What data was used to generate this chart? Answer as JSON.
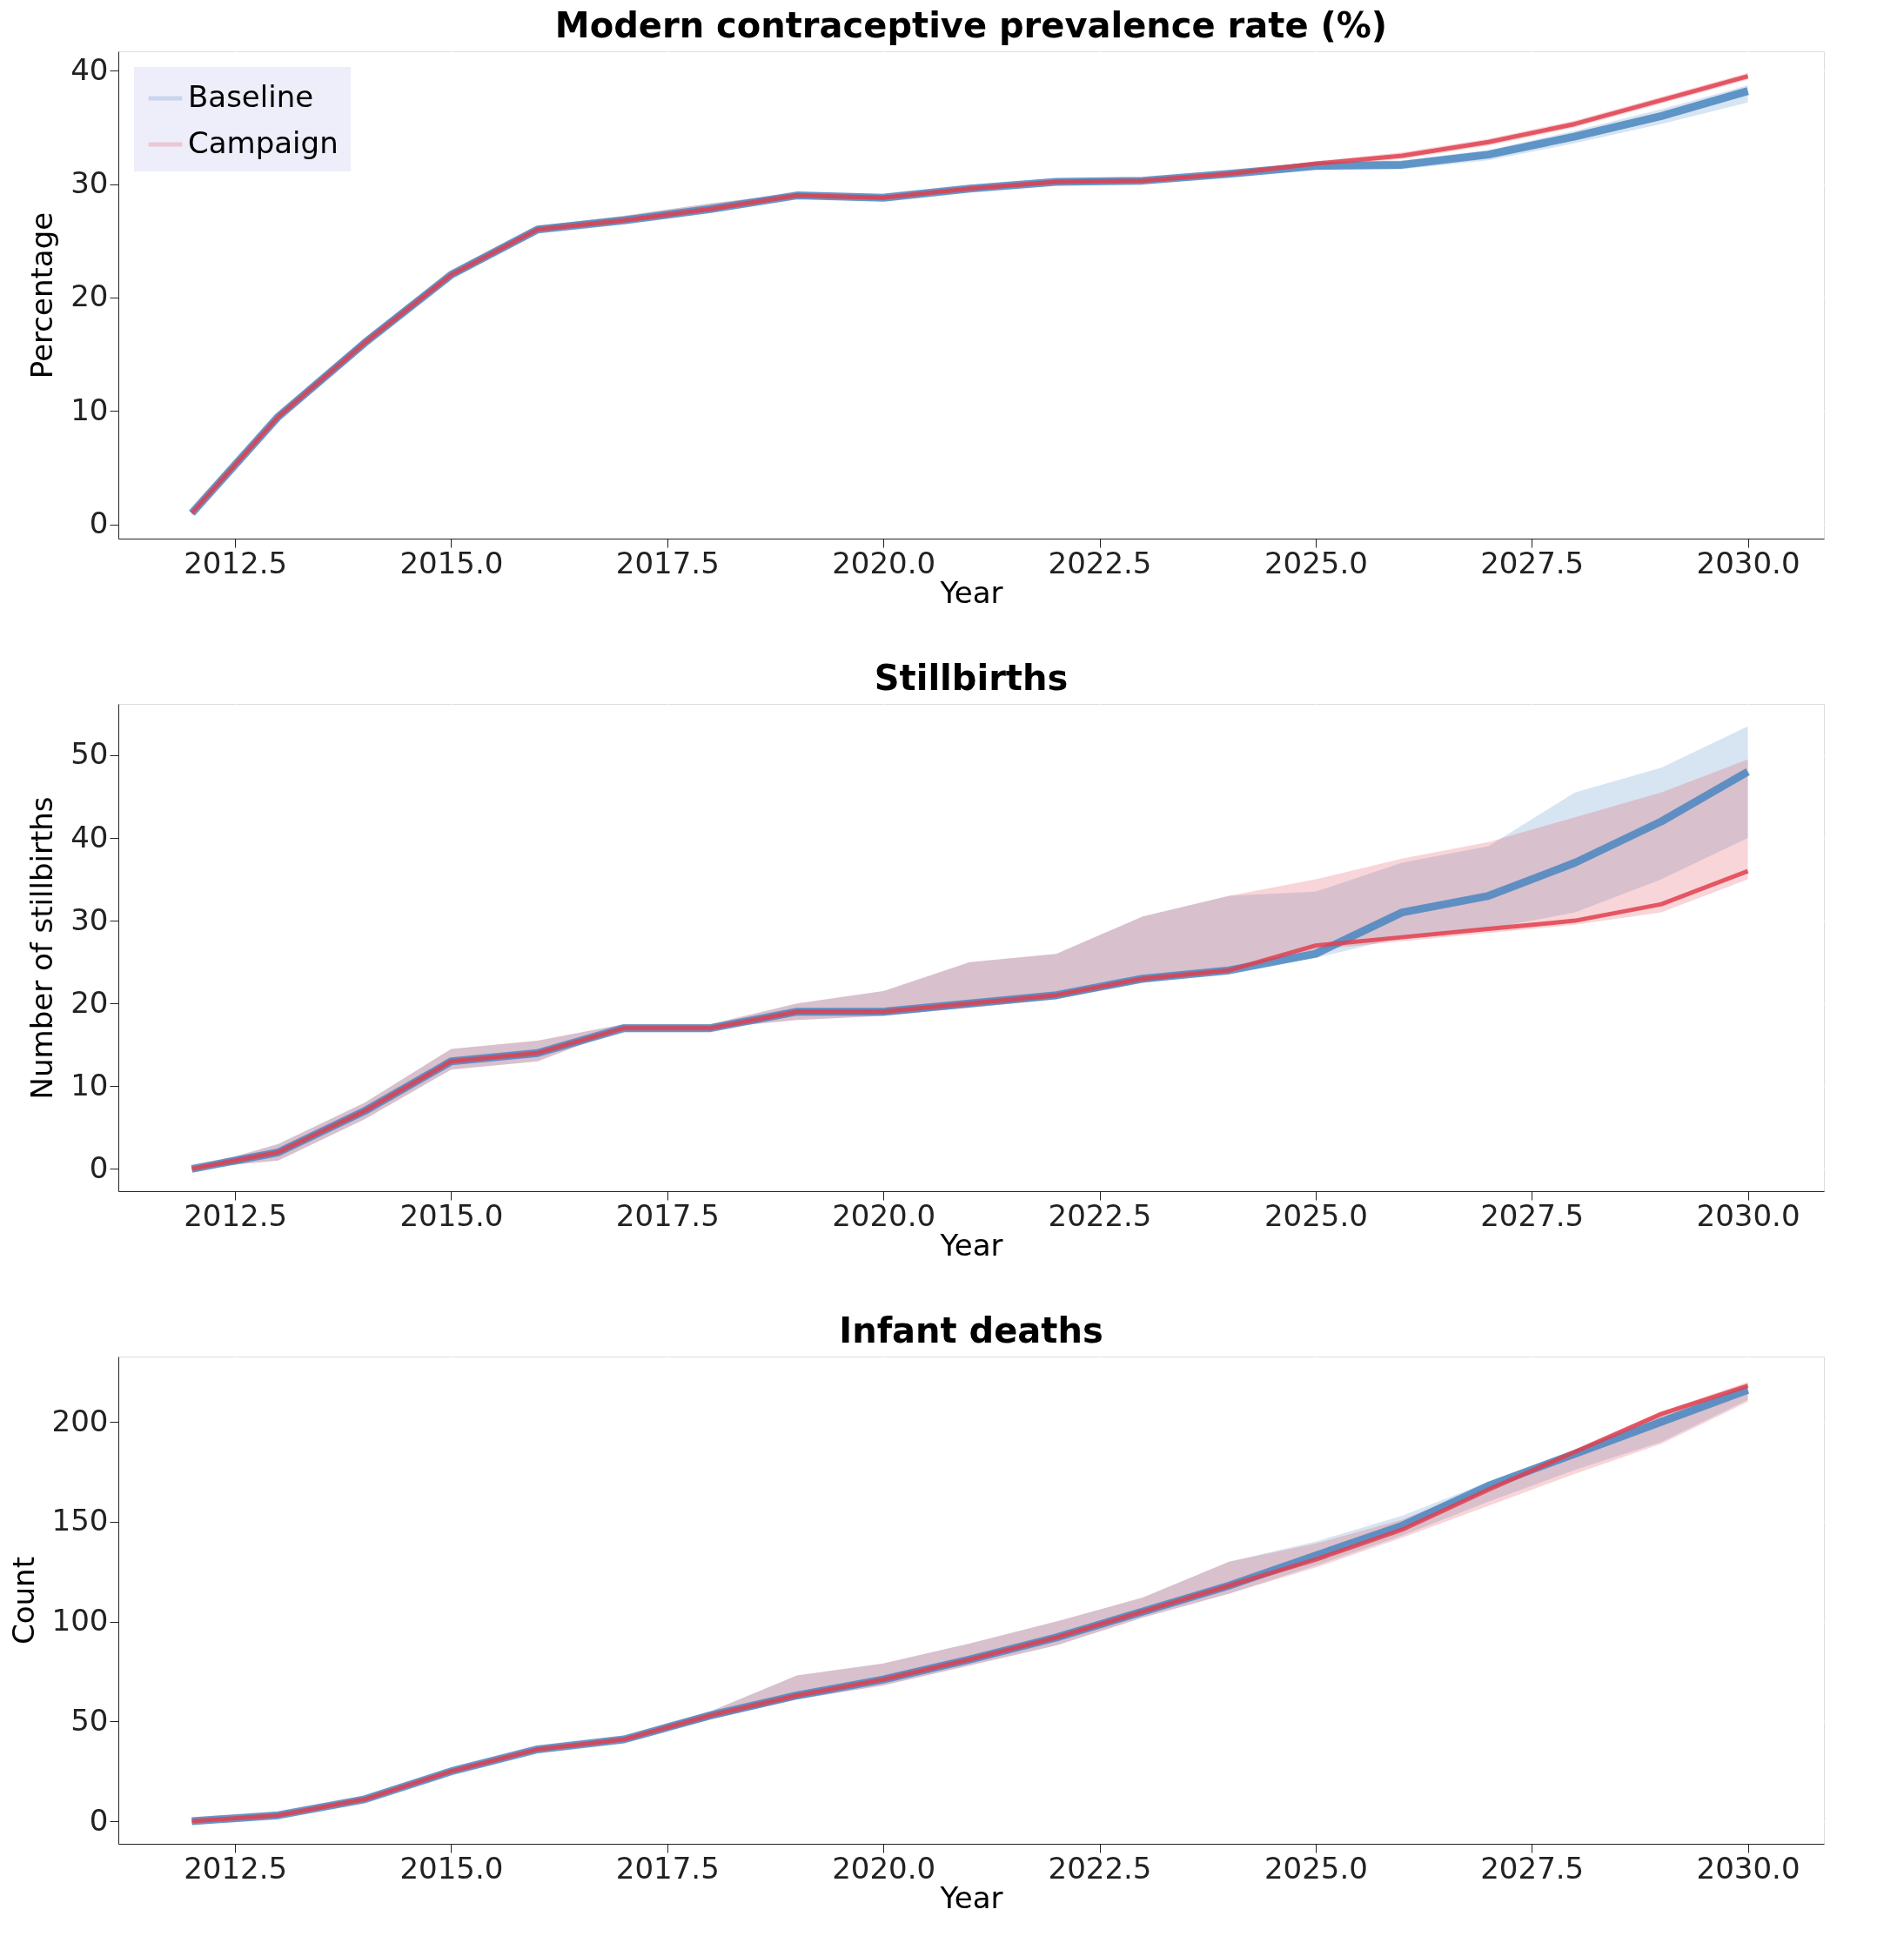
{
  "chart_data": [
    {
      "type": "line",
      "title": "Modern contraceptive prevalence rate (%)",
      "xlabel": "Year",
      "ylabel": "Percentage",
      "x": [
        2012,
        2013,
        2014,
        2015,
        2016,
        2017,
        2018,
        2019,
        2020,
        2021,
        2022,
        2023,
        2024,
        2025,
        2026,
        2027,
        2028,
        2029,
        2030
      ],
      "series": [
        {
          "name": "Baseline",
          "color": "#4a86c0",
          "values": [
            1,
            9.5,
            16,
            22,
            26,
            26.8,
            27.8,
            29,
            28.8,
            29.6,
            30.2,
            30.3,
            30.9,
            31.6,
            31.7,
            32.6,
            34.2,
            36,
            38.2
          ],
          "lower": [
            0.8,
            9.2,
            15.7,
            21.7,
            25.8,
            26.6,
            27.6,
            28.8,
            28.6,
            29.4,
            30,
            30.1,
            30.7,
            31.3,
            31.3,
            32.1,
            33.6,
            35.3,
            37.2
          ],
          "upper": [
            1.2,
            9.8,
            16.4,
            22.3,
            26.3,
            27.2,
            28.3,
            29.2,
            29,
            29.8,
            30.4,
            30.5,
            31.1,
            31.9,
            32.1,
            33,
            34.7,
            36.6,
            38.7
          ]
        },
        {
          "name": "Campaign",
          "color": "#e0404f",
          "values": [
            1,
            9.5,
            16,
            22,
            26,
            26.8,
            27.8,
            29,
            28.8,
            29.6,
            30.2,
            30.3,
            30.9,
            31.8,
            32.5,
            33.7,
            35.3,
            37.4,
            39.5
          ],
          "lower": [
            0.8,
            9.2,
            15.7,
            21.7,
            25.8,
            26.6,
            27.6,
            28.8,
            28.6,
            29.4,
            30,
            30.1,
            30.7,
            31.6,
            32.2,
            33.4,
            35,
            37.1,
            39.2
          ],
          "upper": [
            1.2,
            9.8,
            16.4,
            22.3,
            26.3,
            27.2,
            28.3,
            29.2,
            29,
            29.8,
            30.4,
            30.5,
            31.1,
            32,
            32.8,
            34,
            35.6,
            37.7,
            39.8
          ]
        }
      ],
      "xlim": [
        2011.15,
        2030.88
      ],
      "xticks": [
        2012.5,
        {
          "value": 2015,
          "label": "2015.0"
        },
        2017.5,
        {
          "value": 2020,
          "label": "2020.0"
        },
        2022.5,
        {
          "value": 2025,
          "label": "2025.0"
        },
        2027.5,
        {
          "value": 2030,
          "label": "2030.0"
        }
      ],
      "ylim": [
        -1.25,
        41.7
      ],
      "yticks": [
        0,
        10,
        20,
        30,
        40
      ],
      "grid": true,
      "legend": "top left"
    },
    {
      "type": "line",
      "title": "Stillbirths",
      "xlabel": "Year",
      "ylabel": "Number of stillbirths",
      "x": [
        2012,
        2013,
        2014,
        2015,
        2016,
        2017,
        2018,
        2019,
        2020,
        2021,
        2022,
        2023,
        2024,
        2025,
        2026,
        2027,
        2028,
        2029,
        2030
      ],
      "series": [
        {
          "name": "Baseline",
          "color": "#4a86c0",
          "values": [
            0,
            2,
            7,
            13,
            14,
            17,
            17,
            19,
            19,
            20,
            21,
            23,
            24,
            26,
            31,
            33,
            37,
            42,
            48
          ],
          "lower": [
            0,
            1,
            6,
            12,
            13,
            17,
            17,
            18,
            18.5,
            19.5,
            20.5,
            22.5,
            24,
            25.5,
            28,
            29,
            31,
            35,
            40
          ],
          "upper": [
            0,
            3,
            8,
            14.5,
            15.5,
            17.5,
            17.5,
            20,
            21.5,
            25,
            26,
            30.5,
            33,
            33.5,
            37,
            39,
            45.5,
            48.5,
            53.5
          ]
        },
        {
          "name": "Campaign",
          "color": "#e0404f",
          "values": [
            0,
            2,
            7,
            13,
            14,
            17,
            17,
            19,
            19,
            20,
            21,
            23,
            24,
            27,
            28,
            29,
            30,
            32,
            36
          ],
          "lower": [
            0,
            1,
            6,
            12,
            13,
            17,
            17,
            18,
            18.5,
            19.5,
            20.5,
            22.5,
            24,
            26.5,
            27.5,
            28.5,
            29.5,
            31,
            35
          ],
          "upper": [
            0,
            3,
            8,
            14.5,
            15.5,
            17.5,
            17.5,
            20,
            21.5,
            25,
            26,
            30.5,
            33,
            35,
            37.5,
            39.5,
            42.5,
            45.5,
            49.5
          ]
        }
      ],
      "xlim": [
        2011.15,
        2030.88
      ],
      "xticks": [
        2012.5,
        {
          "value": 2015,
          "label": "2015.0"
        },
        2017.5,
        {
          "value": 2020,
          "label": "2020.0"
        },
        2022.5,
        {
          "value": 2025,
          "label": "2025.0"
        },
        2027.5,
        {
          "value": 2030,
          "label": "2030.0"
        }
      ],
      "ylim": [
        -2.7,
        56.2
      ],
      "yticks": [
        0,
        10,
        20,
        30,
        40,
        50
      ],
      "grid": true,
      "legend": "top left"
    },
    {
      "type": "line",
      "title": "Infant deaths",
      "xlabel": "Year",
      "ylabel": "Count",
      "x": [
        2012,
        2013,
        2014,
        2015,
        2016,
        2017,
        2018,
        2019,
        2020,
        2021,
        2022,
        2023,
        2024,
        2025,
        2026,
        2027,
        2028,
        2029,
        2030
      ],
      "series": [
        {
          "name": "Baseline",
          "color": "#4a86c0",
          "values": [
            0,
            3,
            11,
            25,
            36,
            41,
            53,
            63,
            71,
            81,
            92,
            105,
            118,
            133,
            148,
            168,
            184,
            200,
            216
          ],
          "lower": [
            0,
            2,
            10,
            24,
            35,
            40,
            51,
            61,
            68,
            78,
            88,
            102,
            114,
            128,
            143,
            160,
            176,
            190,
            211
          ],
          "upper": [
            0,
            4,
            12,
            26,
            37,
            42,
            55,
            73,
            79,
            89,
            100,
            112,
            130,
            140,
            153,
            170,
            186,
            204,
            219
          ]
        },
        {
          "name": "Campaign",
          "color": "#e0404f",
          "values": [
            0,
            3,
            11,
            25,
            36,
            41,
            53,
            63,
            71,
            81,
            92,
            105,
            118,
            131,
            146,
            166,
            185,
            204,
            218
          ],
          "lower": [
            0,
            2,
            10,
            24,
            35,
            40,
            51,
            61,
            68,
            78,
            88,
            102,
            114,
            127,
            142,
            158,
            174,
            189,
            210
          ],
          "upper": [
            0,
            4,
            12,
            26,
            37,
            42,
            55,
            73,
            79,
            89,
            100,
            112,
            130,
            139,
            151,
            168,
            185,
            205,
            220
          ]
        }
      ],
      "xlim": [
        2011.15,
        2030.88
      ],
      "xticks": [
        2012.5,
        {
          "value": 2015,
          "label": "2015.0"
        },
        2017.5,
        {
          "value": 2020,
          "label": "2020.0"
        },
        2022.5,
        {
          "value": 2025,
          "label": "2025.0"
        },
        2027.5,
        {
          "value": 2030,
          "label": "2030.0"
        }
      ],
      "ylim": [
        -11.3,
        232.7
      ],
      "yticks": [
        0,
        50,
        100,
        150,
        200
      ],
      "grid": true,
      "legend": "top left"
    }
  ]
}
